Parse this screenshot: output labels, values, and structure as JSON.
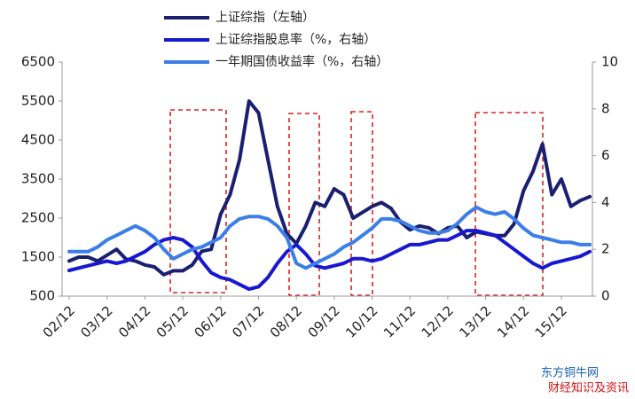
{
  "chart_data": {
    "type": "line",
    "categories": [
      "02/12",
      null,
      null,
      null,
      "03/12",
      null,
      null,
      null,
      "04/12",
      null,
      null,
      null,
      "05/12",
      null,
      null,
      null,
      "06/12",
      null,
      null,
      null,
      "07/12",
      null,
      null,
      null,
      "08/12",
      null,
      null,
      null,
      "09/12",
      null,
      null,
      null,
      "10/12",
      null,
      null,
      null,
      "11/12",
      null,
      null,
      null,
      "12/12",
      null,
      null,
      null,
      "13/12",
      null,
      null,
      null,
      "14/12",
      null,
      null,
      null,
      "15/12",
      null,
      null,
      null
    ],
    "series": [
      {
        "name": "上证综指（左轴）",
        "color": "#1b1f70",
        "axis": "y",
        "values": [
          1400,
          1500,
          1500,
          1400,
          1550,
          1700,
          1450,
          1400,
          1300,
          1250,
          1050,
          1150,
          1150,
          1300,
          1650,
          1700,
          2600,
          3100,
          4000,
          5500,
          5200,
          4000,
          2800,
          2100,
          1850,
          2300,
          2900,
          2800,
          3250,
          3100,
          2500,
          2650,
          2800,
          2900,
          2750,
          2400,
          2200,
          2300,
          2250,
          2100,
          2250,
          2300,
          2000,
          2150,
          2100,
          2050,
          2050,
          2350,
          3200,
          3700,
          4400,
          3100,
          3500,
          2800,
          2950,
          3050
        ]
      },
      {
        "name": "上证综指股息率（%，右轴）",
        "color": "#1818d0",
        "axis": "y2",
        "values": [
          1.1,
          1.2,
          1.3,
          1.4,
          1.5,
          1.4,
          1.5,
          1.7,
          1.9,
          2.2,
          2.4,
          2.5,
          2.4,
          2.1,
          1.5,
          1.0,
          0.8,
          0.7,
          0.5,
          0.3,
          0.4,
          0.8,
          1.4,
          1.9,
          2.2,
          1.8,
          1.3,
          1.2,
          1.3,
          1.4,
          1.6,
          1.6,
          1.5,
          1.6,
          1.8,
          2.0,
          2.2,
          2.2,
          2.3,
          2.4,
          2.4,
          2.6,
          2.8,
          2.8,
          2.7,
          2.6,
          2.3,
          2.0,
          1.7,
          1.4,
          1.2,
          1.4,
          1.5,
          1.6,
          1.7,
          1.9
        ]
      },
      {
        "name": "一年期国债收益率（%，右轴）",
        "color": "#3c7ee8",
        "axis": "y2",
        "values": [
          1.9,
          1.9,
          1.9,
          2.1,
          2.4,
          2.6,
          2.8,
          3.0,
          2.8,
          2.5,
          2.0,
          1.6,
          1.8,
          2.0,
          2.1,
          2.3,
          2.5,
          3.0,
          3.3,
          3.4,
          3.4,
          3.3,
          3.0,
          2.5,
          1.4,
          1.2,
          1.4,
          1.6,
          1.8,
          2.1,
          2.3,
          2.6,
          2.9,
          3.3,
          3.3,
          3.2,
          3.0,
          2.8,
          2.7,
          2.7,
          2.8,
          3.1,
          3.5,
          3.8,
          3.6,
          3.5,
          3.6,
          3.3,
          2.9,
          2.6,
          2.5,
          2.4,
          2.3,
          2.3,
          2.2,
          2.2
        ]
      }
    ],
    "ylim": [
      500,
      6500
    ],
    "yticks": [
      500,
      1500,
      2500,
      3500,
      4500,
      5500,
      6500
    ],
    "y2lim": [
      0,
      10
    ],
    "y2ticks": [
      0,
      2,
      4,
      6,
      8,
      10
    ],
    "grid": false,
    "watermark": [
      "东方铜牛网",
      "财经知识及资讯"
    ]
  }
}
